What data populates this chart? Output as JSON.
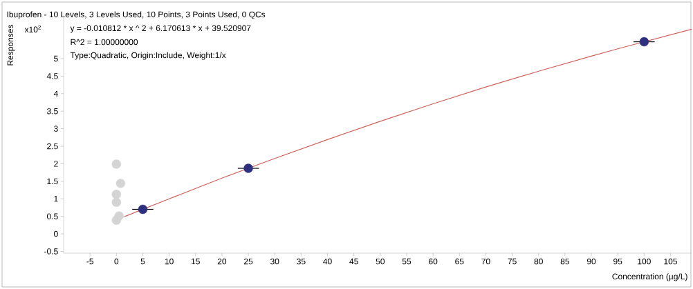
{
  "chart_data": {
    "type": "scatter",
    "title": "Ibuprofen - 10 Levels, 3 Levels Used, 10 Points, 3 Points Used, 0 QCs",
    "xlabel": "Concentration (µg/L)",
    "ylabel": "Responses",
    "annotations": [
      "x10$^{2}$",
      "y = -0.010812 * x ^ 2  + 6.170613 * x  + 39.520907",
      "R^2 = 1.00000000",
      "Type:Quadratic, Origin:Include, Weight:1/x"
    ],
    "xlim": [
      -10,
      109
    ],
    "ylim": [
      -0.55,
      6.24
    ],
    "xticks": [
      -5,
      0,
      5,
      10,
      15,
      20,
      25,
      30,
      35,
      40,
      45,
      50,
      55,
      60,
      65,
      70,
      75,
      80,
      85,
      90,
      95,
      100,
      105
    ],
    "yticks": [
      -0.5,
      0,
      0.5,
      1,
      1.5,
      2,
      2.5,
      3,
      3.5,
      4,
      4.5,
      5
    ],
    "marker": "circle",
    "series": [
      {
        "type": "line",
        "color": "#d0605a",
        "marker": "none",
        "x": [
          1.5,
          10,
          20,
          30,
          40,
          50,
          60,
          70,
          80,
          90,
          95,
          109
        ],
        "values": [
          0.49,
          1.0,
          1.59,
          2.15,
          2.69,
          3.21,
          3.71,
          4.19,
          4.64,
          5.07,
          5.28,
          5.84
        ]
      },
      {
        "color": "#d4d4d4",
        "x": [
          0,
          0.8,
          0,
          0,
          0.5,
          0
        ],
        "values": [
          1.99,
          1.44,
          1.13,
          0.9,
          0.51,
          0.39
        ]
      },
      {
        "color": "#2e2f7f",
        "x": [
          5,
          25,
          100
        ],
        "values": [
          0.7,
          1.87,
          5.48
        ],
        "xerrors": [
          2,
          2,
          2
        ]
      }
    ]
  }
}
